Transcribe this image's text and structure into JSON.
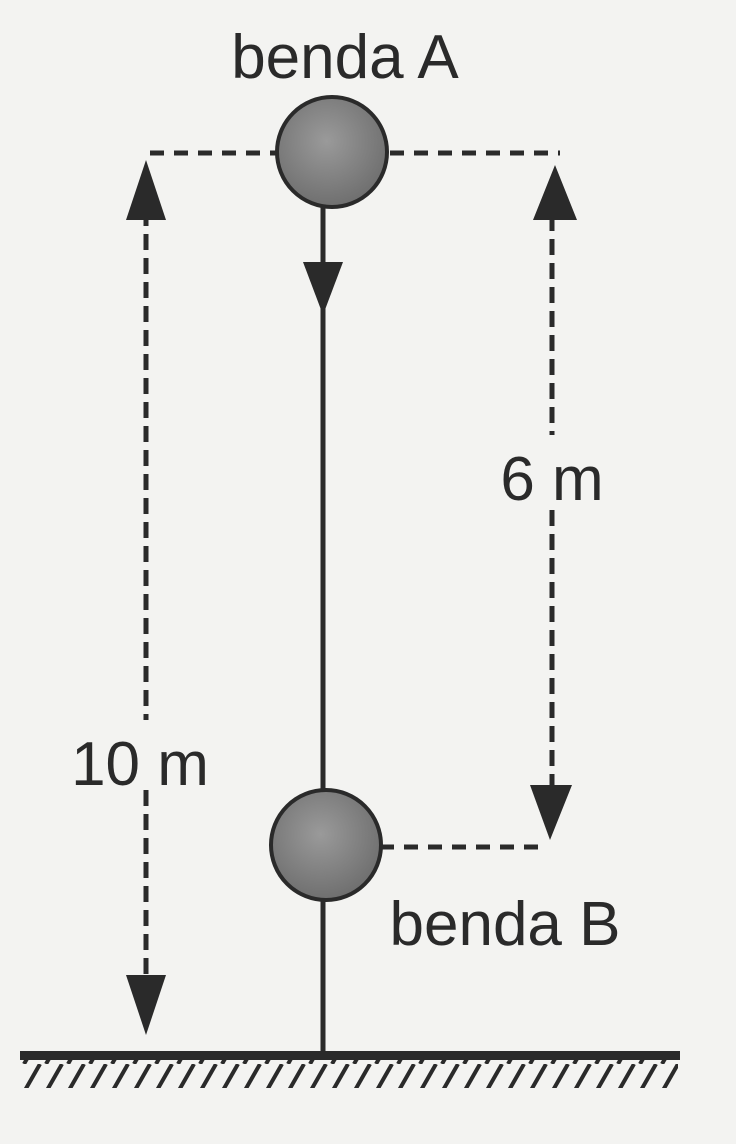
{
  "labels": {
    "object_a": "benda A",
    "object_b": "benda B",
    "total_height": "10 m",
    "separation": "6 m"
  },
  "colors": {
    "ink": "#2a2a2a",
    "ball_fill": "#8a8a8a",
    "background": "#f3f3f1"
  }
}
